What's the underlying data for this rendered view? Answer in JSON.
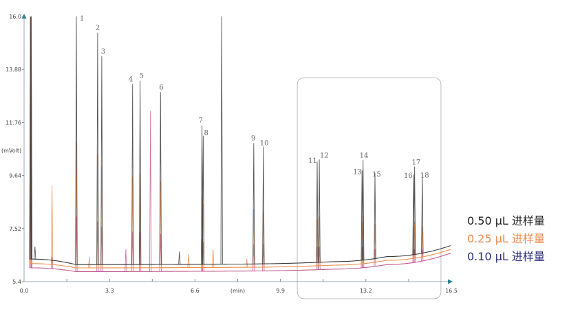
{
  "chart_data": {
    "type": "line",
    "title": "",
    "xlabel": "(min)",
    "ylabel": "(mVolt)",
    "xlim": [
      0.0,
      16.5
    ],
    "ylim": [
      5.4,
      16.0
    ],
    "x_ticks": [
      "0.0",
      "3.3",
      "6.6",
      "9.9",
      "13.2",
      "16.5"
    ],
    "x_minor_ticks": [
      1.65,
      4.95,
      8.25,
      11.55,
      14.85
    ],
    "y_ticks": [
      "5.4",
      "7.52",
      "9.64",
      "11.76",
      "13.88",
      "16.0"
    ],
    "grid": false,
    "legend_position": "right",
    "highlight_box_x_range": [
      10.55,
      16.1
    ],
    "series": [
      {
        "name": "0.50 μL 进样量",
        "color": "#3a3a3a",
        "legend_color": "#222222",
        "baseline": [
          [
            0.3,
            6.3
          ],
          [
            2,
            6.08
          ],
          [
            8,
            6.1
          ],
          [
            12,
            6.2
          ],
          [
            14,
            6.4
          ],
          [
            16.5,
            6.85
          ]
        ],
        "peaks": [
          [
            0.26,
            17.0
          ],
          [
            0.42,
            6.8
          ],
          [
            2.02,
            17.0
          ],
          [
            2.84,
            15.35
          ],
          [
            3.0,
            14.41
          ],
          [
            4.19,
            13.3
          ],
          [
            4.48,
            13.43
          ],
          [
            5.27,
            12.97
          ],
          [
            6.87,
            11.65
          ],
          [
            6.92,
            11.23
          ],
          [
            7.63,
            17.0
          ],
          [
            8.87,
            10.94
          ],
          [
            9.24,
            10.8
          ],
          [
            11.32,
            10.2
          ],
          [
            11.4,
            10.28
          ],
          [
            13.05,
            9.84
          ],
          [
            13.09,
            10.27
          ],
          [
            13.55,
            9.74
          ],
          [
            15.04,
            9.68
          ],
          [
            15.08,
            10.0
          ],
          [
            15.38,
            9.7
          ],
          [
            6.0,
            6.6
          ]
        ]
      },
      {
        "name": "0.25 μL 进样量",
        "color": "#ee8d4c",
        "legend_color": "#f08a4b",
        "baseline": [
          [
            0.3,
            6.12
          ],
          [
            2,
            5.95
          ],
          [
            8,
            5.97
          ],
          [
            12,
            6.06
          ],
          [
            14,
            6.25
          ],
          [
            16.5,
            6.7
          ]
        ],
        "peaks": [
          [
            0.26,
            17.0
          ],
          [
            1.08,
            9.24
          ],
          [
            2.02,
            11.0
          ],
          [
            2.52,
            6.4
          ],
          [
            2.84,
            10.5
          ],
          [
            3.0,
            10.0
          ],
          [
            4.19,
            9.6
          ],
          [
            4.48,
            9.7
          ],
          [
            5.27,
            9.4
          ],
          [
            6.35,
            6.5
          ],
          [
            6.87,
            8.8
          ],
          [
            6.92,
            8.5
          ],
          [
            7.3,
            6.7
          ],
          [
            8.6,
            6.3
          ],
          [
            8.87,
            8.3
          ],
          [
            9.24,
            8.2
          ],
          [
            11.32,
            7.9
          ],
          [
            11.4,
            8.0
          ],
          [
            13.05,
            7.8
          ],
          [
            13.09,
            8.0
          ],
          [
            13.55,
            7.7
          ],
          [
            15.04,
            7.6
          ],
          [
            15.08,
            7.8
          ],
          [
            15.38,
            7.6
          ]
        ]
      },
      {
        "name": "0.10 μL 进样量",
        "color": "#c45a8e",
        "legend_color": "#2b2d7c",
        "baseline": [
          [
            0.3,
            5.95
          ],
          [
            2,
            5.8
          ],
          [
            8,
            5.82
          ],
          [
            12,
            5.9
          ],
          [
            14,
            6.08
          ],
          [
            16.5,
            6.55
          ]
        ],
        "peaks": [
          [
            0.26,
            17.0
          ],
          [
            1.08,
            6.4
          ],
          [
            2.02,
            8.0
          ],
          [
            2.84,
            7.8
          ],
          [
            3.0,
            7.6
          ],
          [
            3.93,
            6.7
          ],
          [
            4.19,
            7.4
          ],
          [
            4.48,
            7.4
          ],
          [
            4.88,
            12.22
          ],
          [
            5.27,
            7.3
          ],
          [
            6.87,
            7.1
          ],
          [
            6.92,
            7.0
          ],
          [
            8.87,
            6.9
          ],
          [
            9.24,
            6.9
          ],
          [
            11.32,
            6.8
          ],
          [
            11.4,
            6.8
          ],
          [
            13.05,
            6.8
          ],
          [
            13.09,
            6.8
          ],
          [
            13.55,
            6.7
          ],
          [
            15.04,
            6.7
          ],
          [
            15.08,
            6.7
          ],
          [
            15.38,
            6.7
          ]
        ]
      }
    ],
    "peak_labels": [
      {
        "label": "1",
        "x": 2.02,
        "y": 16.0
      },
      {
        "label": "2",
        "x": 2.84,
        "y": 15.35
      },
      {
        "label": "3",
        "x": 3.0,
        "y": 14.41
      },
      {
        "label": "4",
        "x": 4.19,
        "y": 13.3
      },
      {
        "label": "5",
        "x": 4.48,
        "y": 13.43
      },
      {
        "label": "6",
        "x": 5.27,
        "y": 12.97
      },
      {
        "label": "7",
        "x": 6.87,
        "y": 11.65
      },
      {
        "label": "8",
        "x": 6.92,
        "y": 11.23
      },
      {
        "label": "9",
        "x": 8.87,
        "y": 10.94
      },
      {
        "label": "10",
        "x": 9.24,
        "y": 10.8
      },
      {
        "label": "11",
        "x": 11.32,
        "y": 10.2
      },
      {
        "label": "12",
        "x": 11.4,
        "y": 10.28
      },
      {
        "label": "13",
        "x": 13.05,
        "y": 9.84
      },
      {
        "label": "14",
        "x": 13.09,
        "y": 10.27
      },
      {
        "label": "15",
        "x": 13.55,
        "y": 9.74
      },
      {
        "label": "16",
        "x": 15.04,
        "y": 9.68
      },
      {
        "label": "17",
        "x": 15.08,
        "y": 10.0
      },
      {
        "label": "18",
        "x": 15.38,
        "y": 9.7
      }
    ]
  }
}
